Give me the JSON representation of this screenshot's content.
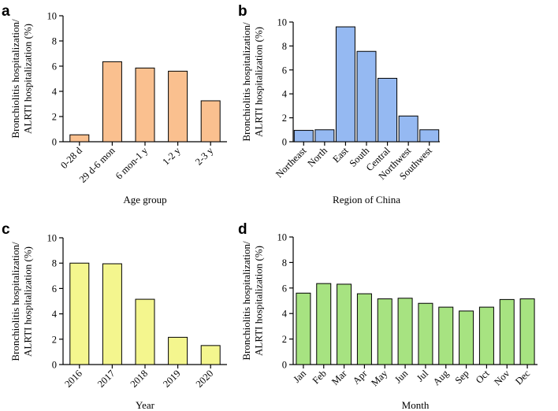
{
  "chart_data": [
    {
      "panel": "a",
      "type": "bar",
      "categories": [
        "0-28 d",
        "29 d-6 mon",
        "6 mon-1 y",
        "1-2 y",
        "2-3 y"
      ],
      "values": [
        0.55,
        6.35,
        5.85,
        5.6,
        3.25
      ],
      "xlabel": "Age group",
      "ylabel": [
        "Bronchiolitis hospitalization/",
        "ALRTI hospitalization (%)"
      ],
      "ylim": [
        0,
        10
      ],
      "yticks": [
        "0",
        "2",
        "4",
        "6",
        "8",
        "10"
      ],
      "color": "#FAC08F"
    },
    {
      "panel": "b",
      "type": "bar",
      "categories": [
        "Northeast",
        "North",
        "East",
        "South",
        "Central",
        "Northwest",
        "Southwest"
      ],
      "values": [
        0.95,
        1.0,
        9.6,
        7.55,
        5.3,
        2.15,
        1.0
      ],
      "xlabel": "Region of China",
      "ylabel": [
        "Bronchiolitis hospitalization/",
        "ALRTI hospitalization (%)"
      ],
      "ylim": [
        0,
        10
      ],
      "yticks": [
        "0",
        "2",
        "4",
        "6",
        "8",
        "10"
      ],
      "color": "#95B9F2"
    },
    {
      "panel": "c",
      "type": "bar",
      "categories": [
        "2016",
        "2017",
        "2018",
        "2019",
        "2020"
      ],
      "values": [
        8.0,
        7.95,
        5.15,
        2.15,
        1.5
      ],
      "xlabel": "Year",
      "ylabel": [
        "Bronchiolitis hospitalization/",
        "ALRTI hospitalization (%)"
      ],
      "ylim": [
        0,
        10
      ],
      "yticks": [
        "0",
        "2",
        "4",
        "6",
        "8",
        "10"
      ],
      "color": "#F4F68E"
    },
    {
      "panel": "d",
      "type": "bar",
      "categories": [
        "Jan",
        "Feb",
        "Mar",
        "Apr",
        "May",
        "Jun",
        "Jul",
        "Aug",
        "Sep",
        "Oct",
        "Nov",
        "Dec"
      ],
      "values": [
        5.6,
        6.35,
        6.3,
        5.55,
        5.15,
        5.2,
        4.8,
        4.5,
        4.2,
        4.5,
        5.1,
        5.15
      ],
      "xlabel": "Month",
      "ylabel": [
        "Bronchiolitis hospitalization/",
        "ALRTI hospitalization (%)"
      ],
      "ylim": [
        0,
        10
      ],
      "yticks": [
        "0",
        "2",
        "4",
        "6",
        "8",
        "10"
      ],
      "color": "#A7E381"
    }
  ]
}
